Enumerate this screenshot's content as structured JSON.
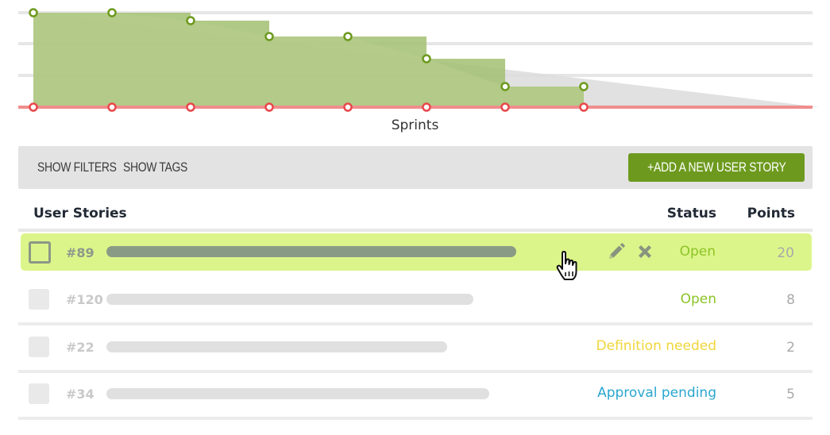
{
  "chart_data": {
    "type": "area",
    "xlabel": "Sprints",
    "ylabel": "",
    "x": [
      1,
      2,
      3,
      4,
      5,
      6,
      7,
      8
    ],
    "ideal_line": {
      "start": 119,
      "end": 0,
      "x_end": 11
    },
    "series": [
      {
        "values": [
          119,
          119,
          109,
          89,
          89,
          61,
          26,
          26
        ],
        "color": "#6d9a1e"
      },
      {
        "values": [
          0,
          0,
          0,
          0,
          0,
          0,
          0,
          0
        ],
        "color": "#e8484a"
      }
    ],
    "ylim": [
      0,
      119
    ],
    "gridlines": [
      0,
      40,
      80,
      119
    ],
    "grid": true
  },
  "toolbar": {
    "show_filters": "SHOW FILTERS",
    "show_tags": "SHOW TAGS",
    "add_story": "+ADD A NEW USER STORY"
  },
  "table": {
    "headers": {
      "stories": "User Stories",
      "status": "Status",
      "points": "Points"
    },
    "rows": [
      {
        "id": "#89",
        "status": "Open",
        "status_color": "#8cc427",
        "points": "20",
        "title_fill": 0.77
      },
      {
        "id": "#120",
        "status": "Open",
        "status_color": "#8cc427",
        "points": "8",
        "title_fill": 0.69
      },
      {
        "id": "#22",
        "status": "Definition needed",
        "status_color": "#f0d63a",
        "points": "2",
        "title_fill": 0.64
      },
      {
        "id": "#34",
        "status": "Approval pending",
        "status_color": "#2aa6cf",
        "points": "5",
        "title_fill": 0.72
      }
    ]
  },
  "icons": {
    "edit": "pencil-icon",
    "delete": "close-icon",
    "cursor": "hand-pointer-icon"
  }
}
